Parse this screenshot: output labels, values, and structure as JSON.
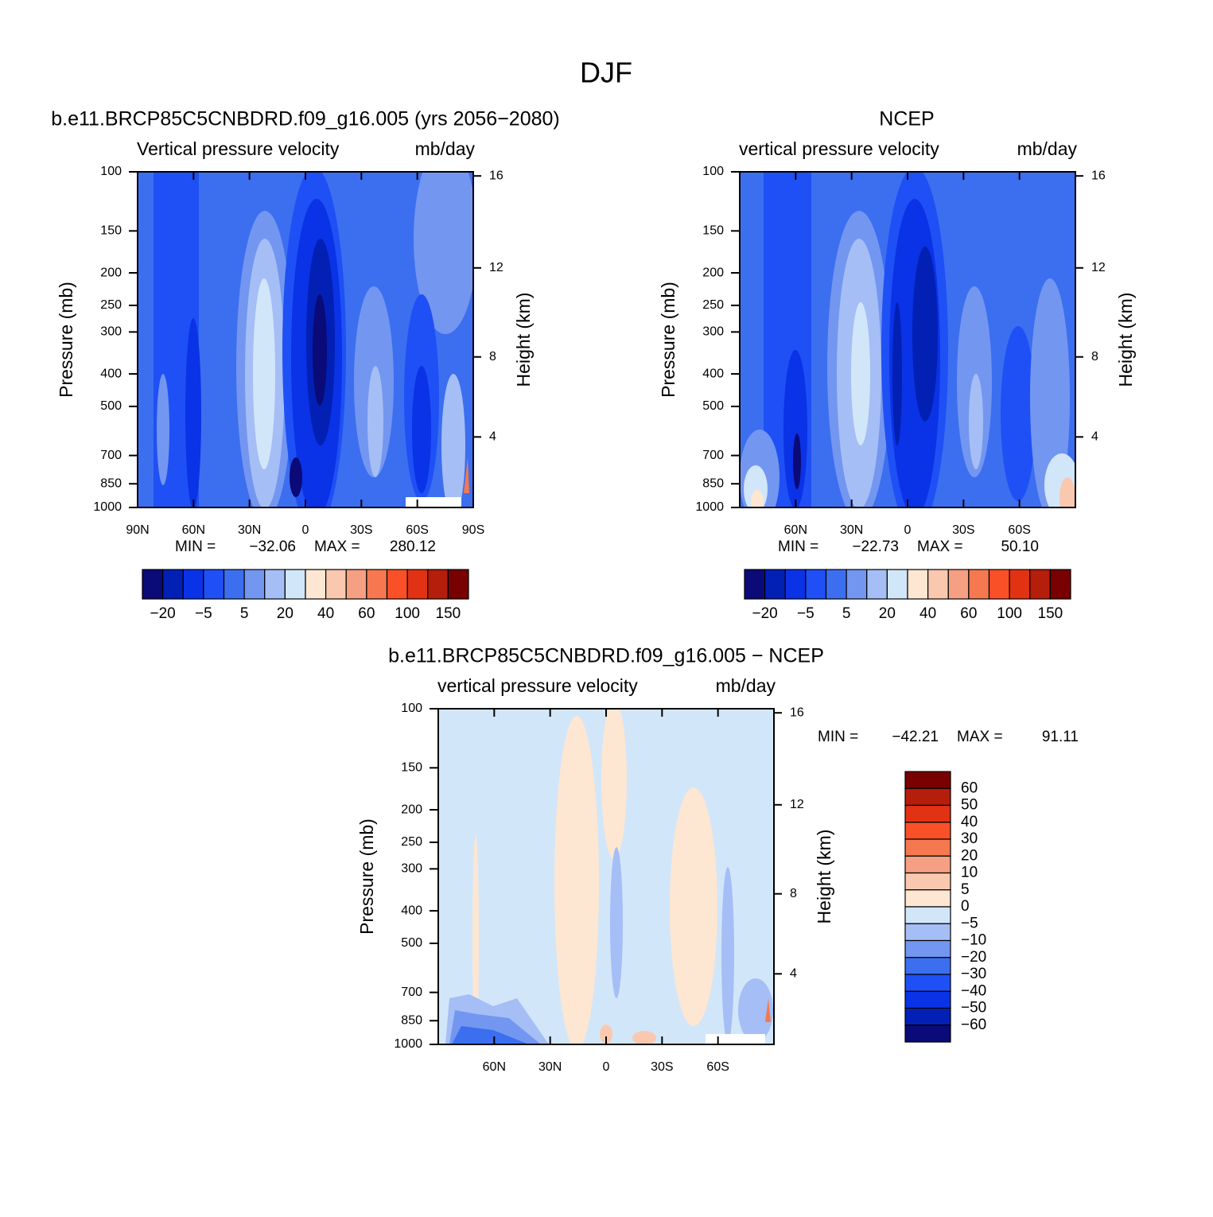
{
  "page_title": "DJF",
  "chart_data": [
    {
      "type": "contour",
      "title": "b.e11.BRCP85C5CNBDRD.f09_g16.005 (yrs 2056−2080)",
      "subtitle": "Vertical pressure velocity",
      "units": "mb/day",
      "ylabel": "Pressure (mb)",
      "y2label": "Height (km)",
      "ylim": [
        1000,
        100
      ],
      "log_y": true,
      "yticks": [
        100,
        150,
        200,
        250,
        300,
        400,
        500,
        700,
        850,
        1000
      ],
      "y2ticks": [
        4,
        8,
        12,
        16
      ],
      "xlim": [
        90,
        -90
      ],
      "xticks": [
        {
          "value": 90,
          "label": "90N"
        },
        {
          "value": 60,
          "label": "60N"
        },
        {
          "value": 30,
          "label": "30N"
        },
        0,
        {
          "value": -30,
          "label": "30S"
        },
        {
          "value": -60,
          "label": "60S"
        },
        {
          "value": -90,
          "label": "90S"
        }
      ],
      "stats": {
        "min_text": "MIN =",
        "min": {
          "value": -32.06,
          "label": "−32.06"
        },
        "max_text": "MAX =",
        "max": 280.12
      },
      "colorbar": {
        "orientation": "horizontal",
        "colors": [
          "#0a0a78",
          "#0320b4",
          "#0a32e6",
          "#1e50f5",
          "#3c6ef0",
          "#7396f0",
          "#a5bef5",
          "#d2e6fa",
          "#fde6d2",
          "#fac8af",
          "#f5a082",
          "#f57850",
          "#fa5028",
          "#e13214",
          "#b41e0a",
          "#780000"
        ],
        "labels": [
          {
            "value": -20,
            "label": "−20"
          },
          {
            "value": -5,
            "label": "−5"
          },
          5,
          20,
          40,
          60,
          100,
          150
        ]
      }
    },
    {
      "type": "contour",
      "title": "NCEP",
      "subtitle": "vertical pressure velocity",
      "units": "mb/day",
      "ylabel": "Pressure (mb)",
      "y2label": "Height (km)",
      "ylim": [
        1000,
        100
      ],
      "log_y": true,
      "yticks": [
        100,
        150,
        200,
        250,
        300,
        400,
        500,
        700,
        850,
        1000
      ],
      "y2ticks": [
        4,
        8,
        12,
        16
      ],
      "xlim": [
        90,
        -90
      ],
      "xticks": [
        {
          "value": 60,
          "label": "60N"
        },
        {
          "value": 30,
          "label": "30N"
        },
        0,
        {
          "value": -30,
          "label": "30S"
        },
        {
          "value": -60,
          "label": "60S"
        }
      ],
      "stats": {
        "min_text": "MIN =",
        "min": {
          "value": -22.73,
          "label": "−22.73"
        },
        "max_text": "MAX =",
        "max": {
          "value": 50.1,
          "label": "50.10"
        }
      },
      "colorbar": {
        "orientation": "horizontal",
        "colors": [
          "#0a0a78",
          "#0320b4",
          "#0a32e6",
          "#1e50f5",
          "#3c6ef0",
          "#7396f0",
          "#a5bef5",
          "#d2e6fa",
          "#fde6d2",
          "#fac8af",
          "#f5a082",
          "#f57850",
          "#fa5028",
          "#e13214",
          "#b41e0a",
          "#780000"
        ],
        "labels": [
          {
            "value": -20,
            "label": "−20"
          },
          {
            "value": -5,
            "label": "−5"
          },
          5,
          20,
          40,
          60,
          100,
          150
        ]
      }
    },
    {
      "type": "contour",
      "title": "b.e11.BRCP85C5CNBDRD.f09_g16.005 − NCEP",
      "subtitle": "vertical pressure velocity",
      "units": "mb/day",
      "ylabel": "Pressure (mb)",
      "y2label": "Height (km)",
      "ylim": [
        1000,
        100
      ],
      "log_y": true,
      "yticks": [
        100,
        150,
        200,
        250,
        300,
        400,
        500,
        700,
        850,
        1000
      ],
      "y2ticks": [
        4,
        8,
        12,
        16
      ],
      "xlim": [
        90,
        -90
      ],
      "xticks": [
        {
          "value": 60,
          "label": "60N"
        },
        {
          "value": 30,
          "label": "30N"
        },
        0,
        {
          "value": -30,
          "label": "30S"
        },
        {
          "value": -60,
          "label": "60S"
        }
      ],
      "stats": {
        "min_text": "MIN =",
        "min": {
          "value": -42.21,
          "label": "−42.21"
        },
        "max_text": "MAX =",
        "max": 91.11
      },
      "colorbar": {
        "orientation": "vertical",
        "colors": [
          "#780000",
          "#b41e0a",
          "#e13214",
          "#fa5028",
          "#f57850",
          "#f5a082",
          "#fac8af",
          "#fde6d2",
          "#d2e6fa",
          "#a5bef5",
          "#7396f0",
          "#3c6ef0",
          "#1e50f5",
          "#0a32e6",
          "#0320b4",
          "#0a0a78"
        ],
        "labels": [
          60,
          50,
          40,
          30,
          20,
          10,
          5,
          0,
          {
            "value": -5,
            "label": "−5"
          },
          {
            "value": -10,
            "label": "−10"
          },
          {
            "value": -20,
            "label": "−20"
          },
          {
            "value": -30,
            "label": "−30"
          },
          {
            "value": -40,
            "label": "−40"
          },
          {
            "value": -50,
            "label": "−50"
          },
          {
            "value": -60,
            "label": "−60"
          }
        ]
      }
    }
  ]
}
